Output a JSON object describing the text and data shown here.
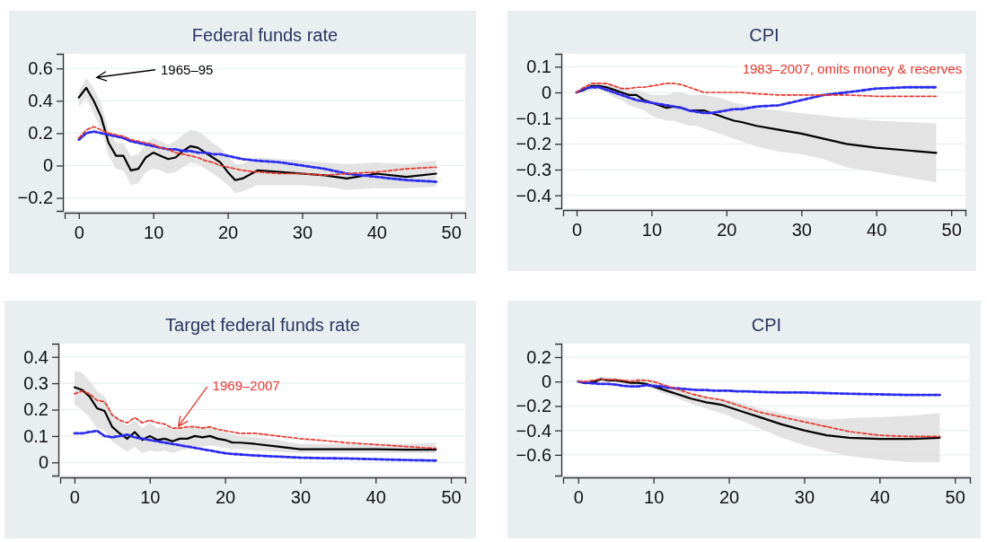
{
  "chart_data": [
    {
      "type": "line",
      "title": "Federal funds rate",
      "x": [
        0,
        1,
        2,
        3,
        4,
        5,
        6,
        7,
        8,
        9,
        10,
        11,
        12,
        13,
        14,
        15,
        16,
        17,
        18,
        19,
        20,
        21,
        22,
        24,
        27,
        30,
        33,
        36,
        40,
        44,
        48
      ],
      "xlim": [
        -1.9,
        51.9
      ],
      "xticks": [
        0,
        10,
        20,
        30,
        40,
        50
      ],
      "ylim": [
        -0.28,
        0.69
      ],
      "yticks": [
        {
          "value": -0.2,
          "label": "−0.2"
        },
        0,
        0.2,
        0.4,
        0.6
      ],
      "grid": "y",
      "annotations": [
        "1965–95"
      ],
      "series": [
        {
          "color": "#000000",
          "line_style": "solid",
          "values": [
            0.42,
            0.48,
            0.4,
            0.3,
            0.14,
            0.06,
            0.06,
            -0.03,
            -0.02,
            0.05,
            0.08,
            0.06,
            0.04,
            0.05,
            0.09,
            0.12,
            0.11,
            0.08,
            0.05,
            0.02,
            -0.04,
            -0.09,
            -0.08,
            -0.03,
            -0.04,
            -0.05,
            -0.06,
            -0.08,
            -0.05,
            -0.07,
            -0.05
          ],
          "lower": [
            0.36,
            0.42,
            0.32,
            0.22,
            0.06,
            -0.02,
            -0.03,
            -0.12,
            -0.11,
            -0.04,
            -0.02,
            -0.03,
            -0.05,
            -0.04,
            -0.01,
            0.02,
            0.01,
            -0.02,
            -0.05,
            -0.08,
            -0.12,
            -0.17,
            -0.16,
            -0.12,
            -0.12,
            -0.12,
            -0.13,
            -0.15,
            -0.14,
            -0.14,
            -0.13
          ],
          "upper": [
            0.46,
            0.54,
            0.48,
            0.38,
            0.22,
            0.14,
            0.14,
            0.06,
            0.07,
            0.14,
            0.17,
            0.15,
            0.13,
            0.15,
            0.19,
            0.22,
            0.21,
            0.18,
            0.14,
            0.11,
            0.06,
            0.01,
            0.01,
            0.05,
            0.04,
            0.03,
            0.02,
            0.01,
            0.02,
            0.01,
            0.03
          ]
        },
        {
          "color": "#e8352b",
          "line_style": "dashed",
          "values": [
            0.17,
            0.22,
            0.24,
            0.22,
            0.2,
            0.19,
            0.18,
            0.16,
            0.15,
            0.14,
            0.13,
            0.11,
            0.1,
            0.08,
            0.07,
            0.06,
            0.05,
            0.03,
            0.02,
            0.0,
            -0.01,
            -0.02,
            -0.03,
            -0.04,
            -0.05,
            -0.05,
            -0.06,
            -0.05,
            -0.04,
            -0.02,
            -0.01
          ]
        },
        {
          "color": "#2b2bf0",
          "line_style": "dashed",
          "values": [
            0.16,
            0.2,
            0.21,
            0.2,
            0.19,
            0.18,
            0.17,
            0.15,
            0.14,
            0.13,
            0.12,
            0.11,
            0.1,
            0.1,
            0.09,
            0.09,
            0.08,
            0.08,
            0.07,
            0.07,
            0.06,
            0.05,
            0.04,
            0.03,
            0.02,
            0.0,
            -0.02,
            -0.05,
            -0.07,
            -0.09,
            -0.1
          ]
        }
      ]
    },
    {
      "type": "line",
      "title": "CPI",
      "x": [
        0,
        1,
        2,
        3,
        4,
        5,
        6,
        7,
        8,
        9,
        10,
        11,
        12,
        13,
        14,
        15,
        16,
        17,
        18,
        19,
        20,
        21,
        22,
        24,
        27,
        30,
        33,
        36,
        40,
        44,
        48
      ],
      "xlim": [
        -1.8,
        51.9
      ],
      "xticks": [
        0,
        10,
        20,
        30,
        40,
        50
      ],
      "ylim": [
        -0.45,
        0.15
      ],
      "yticks": [
        {
          "value": -0.4,
          "label": "−0.4"
        },
        {
          "value": -0.3,
          "label": "−0.3"
        },
        {
          "value": -0.2,
          "label": "−0.2"
        },
        {
          "value": -0.1,
          "label": "−0.1"
        },
        0,
        0.1
      ],
      "grid": "y",
      "annotations": [
        "1983–2007, omits money & reserves"
      ],
      "series": [
        {
          "color": "#000000",
          "line_style": "solid",
          "values": [
            0,
            0.01,
            0.025,
            0.025,
            0.02,
            0.01,
            0,
            -0.01,
            -0.01,
            -0.03,
            -0.04,
            -0.05,
            -0.06,
            -0.055,
            -0.06,
            -0.07,
            -0.07,
            -0.07,
            -0.08,
            -0.09,
            -0.1,
            -0.11,
            -0.115,
            -0.13,
            -0.145,
            -0.16,
            -0.18,
            -0.2,
            -0.215,
            -0.225,
            -0.235
          ],
          "lower": [
            0,
            0.0,
            0.01,
            0.01,
            0.0,
            -0.02,
            -0.03,
            -0.05,
            -0.06,
            -0.07,
            -0.09,
            -0.1,
            -0.11,
            -0.11,
            -0.12,
            -0.13,
            -0.13,
            -0.14,
            -0.15,
            -0.16,
            -0.17,
            -0.18,
            -0.19,
            -0.21,
            -0.23,
            -0.24,
            -0.26,
            -0.29,
            -0.31,
            -0.33,
            -0.35
          ],
          "upper": [
            0,
            0.02,
            0.04,
            0.04,
            0.035,
            0.03,
            0.02,
            0.01,
            0.01,
            0.0,
            -0.01,
            -0.01,
            -0.01,
            0.0,
            0.0,
            -0.01,
            -0.01,
            -0.01,
            -0.015,
            -0.02,
            -0.03,
            -0.04,
            -0.045,
            -0.06,
            -0.07,
            -0.08,
            -0.09,
            -0.1,
            -0.11,
            -0.115,
            -0.12
          ]
        },
        {
          "color": "#e8352b",
          "line_style": "dashed",
          "values": [
            0,
            0.02,
            0.035,
            0.035,
            0.035,
            0.025,
            0.015,
            0.015,
            0.02,
            0.02,
            0.025,
            0.03,
            0.035,
            0.035,
            0.03,
            0.02,
            0.01,
            0.0,
            0.0,
            0.0,
            0.0,
            0.0,
            0.0,
            -0.005,
            -0.01,
            -0.01,
            -0.01,
            -0.01,
            -0.015,
            -0.015,
            -0.015
          ]
        },
        {
          "color": "#2b2bf0",
          "line_style": "dashed",
          "values": [
            0,
            0.015,
            0.02,
            0.02,
            0.01,
            0.0,
            -0.01,
            -0.02,
            -0.03,
            -0.035,
            -0.04,
            -0.045,
            -0.05,
            -0.055,
            -0.06,
            -0.07,
            -0.075,
            -0.08,
            -0.08,
            -0.075,
            -0.07,
            -0.065,
            -0.065,
            -0.055,
            -0.05,
            -0.03,
            -0.01,
            0.0,
            0.015,
            0.02,
            0.02
          ]
        }
      ]
    },
    {
      "type": "line",
      "title": "Target federal funds rate",
      "x": [
        0,
        1,
        2,
        3,
        4,
        5,
        6,
        7,
        8,
        9,
        10,
        11,
        12,
        13,
        14,
        15,
        16,
        17,
        18,
        19,
        20,
        21,
        22,
        24,
        27,
        30,
        33,
        36,
        40,
        44,
        48
      ],
      "xlim": [
        -1.9,
        51.9
      ],
      "xticks": [
        0,
        10,
        20,
        30,
        40,
        50
      ],
      "ylim": [
        -0.05,
        0.45
      ],
      "yticks": [
        0,
        0.1,
        0.2,
        0.3,
        0.4
      ],
      "grid": "y",
      "annotations": [
        {
          "text": "1969–2007",
          "x": 13.8,
          "y": 0.13
        }
      ],
      "series": [
        {
          "color": "#000000",
          "line_style": "solid",
          "values": [
            0.285,
            0.275,
            0.25,
            0.205,
            0.195,
            0.135,
            0.11,
            0.09,
            0.115,
            0.085,
            0.1,
            0.085,
            0.09,
            0.08,
            0.09,
            0.09,
            0.1,
            0.095,
            0.1,
            0.09,
            0.085,
            0.075,
            0.075,
            0.07,
            0.06,
            0.05,
            0.05,
            0.05,
            0.05,
            0.048,
            0.048
          ],
          "lower": [
            0.22,
            0.2,
            0.17,
            0.13,
            0.12,
            0.08,
            0.06,
            0.04,
            0.06,
            0.035,
            0.045,
            0.04,
            0.045,
            0.035,
            0.045,
            0.05,
            0.06,
            0.06,
            0.065,
            0.06,
            0.055,
            0.05,
            0.05,
            0.045,
            0.04,
            0.035,
            0.035,
            0.035,
            0.035,
            0.035,
            0.035
          ],
          "upper": [
            0.345,
            0.34,
            0.31,
            0.27,
            0.25,
            0.19,
            0.16,
            0.14,
            0.16,
            0.13,
            0.15,
            0.13,
            0.135,
            0.125,
            0.135,
            0.13,
            0.14,
            0.135,
            0.135,
            0.12,
            0.115,
            0.105,
            0.1,
            0.095,
            0.085,
            0.07,
            0.07,
            0.07,
            0.07,
            0.07,
            0.075
          ]
        },
        {
          "color": "#e8352b",
          "line_style": "dashed",
          "values": [
            0.26,
            0.27,
            0.26,
            0.235,
            0.23,
            0.18,
            0.16,
            0.15,
            0.17,
            0.15,
            0.16,
            0.15,
            0.145,
            0.13,
            0.13,
            0.135,
            0.135,
            0.13,
            0.135,
            0.125,
            0.12,
            0.115,
            0.11,
            0.11,
            0.1,
            0.09,
            0.083,
            0.075,
            0.068,
            0.06,
            0.053
          ]
        },
        {
          "color": "#2b2bf0",
          "line_style": "dashed",
          "values": [
            0.11,
            0.11,
            0.115,
            0.12,
            0.1,
            0.095,
            0.1,
            0.105,
            0.095,
            0.09,
            0.085,
            0.08,
            0.075,
            0.07,
            0.065,
            0.06,
            0.055,
            0.05,
            0.045,
            0.04,
            0.035,
            0.032,
            0.03,
            0.026,
            0.022,
            0.018,
            0.016,
            0.015,
            0.012,
            0.009,
            0.007
          ]
        }
      ]
    },
    {
      "type": "line",
      "title": "CPI",
      "x": [
        0,
        1,
        2,
        3,
        4,
        5,
        6,
        7,
        8,
        9,
        10,
        11,
        12,
        13,
        14,
        15,
        16,
        17,
        18,
        19,
        20,
        21,
        22,
        24,
        27,
        30,
        33,
        36,
        40,
        44,
        48
      ],
      "xlim": [
        -2,
        52
      ],
      "xticks": [
        0,
        10,
        20,
        30,
        40,
        50
      ],
      "ylim": [
        -0.77,
        0.31
      ],
      "yticks": [
        {
          "value": -0.6,
          "label": "−0.6"
        },
        {
          "value": -0.4,
          "label": "−0.4"
        },
        {
          "value": -0.2,
          "label": "−0.2"
        },
        0,
        0.2
      ],
      "grid": "y",
      "series": [
        {
          "color": "#000000",
          "line_style": "solid",
          "values": [
            0,
            -0.015,
            -0.005,
            0.02,
            0.01,
            0.01,
            0,
            -0.01,
            -0.01,
            -0.02,
            -0.04,
            -0.06,
            -0.08,
            -0.1,
            -0.12,
            -0.14,
            -0.155,
            -0.17,
            -0.18,
            -0.19,
            -0.21,
            -0.23,
            -0.25,
            -0.29,
            -0.35,
            -0.4,
            -0.44,
            -0.46,
            -0.47,
            -0.47,
            -0.46
          ],
          "lower": [
            0,
            -0.015,
            -0.01,
            0.0,
            -0.01,
            -0.01,
            -0.02,
            -0.03,
            -0.03,
            -0.04,
            -0.06,
            -0.09,
            -0.11,
            -0.13,
            -0.16,
            -0.18,
            -0.2,
            -0.22,
            -0.24,
            -0.26,
            -0.28,
            -0.31,
            -0.33,
            -0.38,
            -0.46,
            -0.52,
            -0.57,
            -0.61,
            -0.64,
            -0.66,
            -0.66
          ],
          "upper": [
            0,
            0.0,
            0.01,
            0.04,
            0.035,
            0.03,
            0.02,
            0.02,
            0.03,
            0.02,
            0.0,
            -0.02,
            -0.04,
            -0.06,
            -0.08,
            -0.1,
            -0.11,
            -0.12,
            -0.13,
            -0.14,
            -0.15,
            -0.17,
            -0.18,
            -0.22,
            -0.26,
            -0.29,
            -0.31,
            -0.3,
            -0.29,
            -0.28,
            -0.26
          ]
        },
        {
          "color": "#e8352b",
          "line_style": "dashed",
          "values": [
            0,
            0,
            0.01,
            0.02,
            0.015,
            0.015,
            0.01,
            0,
            0.01,
            0.01,
            0,
            -0.02,
            -0.04,
            -0.06,
            -0.08,
            -0.1,
            -0.115,
            -0.13,
            -0.14,
            -0.15,
            -0.17,
            -0.19,
            -0.21,
            -0.25,
            -0.29,
            -0.33,
            -0.37,
            -0.41,
            -0.44,
            -0.45,
            -0.45
          ]
        },
        {
          "color": "#2b2bf0",
          "line_style": "dashed",
          "values": [
            0,
            -0.01,
            -0.015,
            -0.02,
            -0.02,
            -0.025,
            -0.035,
            -0.04,
            -0.04,
            -0.03,
            -0.035,
            -0.04,
            -0.05,
            -0.055,
            -0.06,
            -0.065,
            -0.07,
            -0.07,
            -0.075,
            -0.075,
            -0.075,
            -0.08,
            -0.08,
            -0.085,
            -0.09,
            -0.09,
            -0.095,
            -0.1,
            -0.105,
            -0.11,
            -0.11
          ]
        }
      ]
    }
  ]
}
